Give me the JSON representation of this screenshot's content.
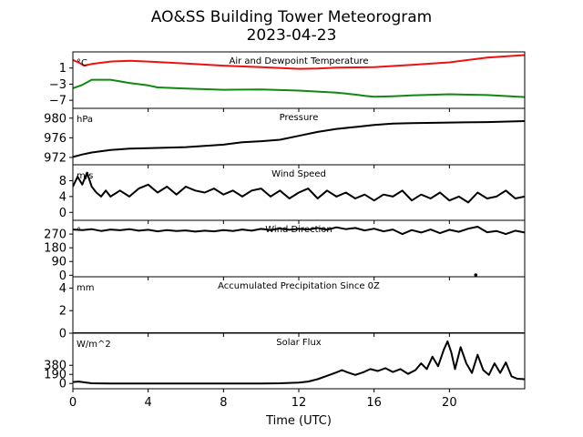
{
  "title": "AO&SS Building Tower Meteorogram",
  "subtitle": "2023-04-23",
  "colors": {
    "temperature": "#ee1111",
    "dewpoint": "#118811",
    "default": "#000000"
  },
  "chart_data": {
    "type": "line",
    "xlabel": "Time (UTC)",
    "xlim": [
      0,
      24
    ],
    "x_ticks": [
      0,
      4,
      8,
      12,
      16,
      20
    ],
    "x_tick_labels": [
      "0",
      "4",
      "8",
      "12",
      "16",
      "20"
    ],
    "panels": [
      {
        "title": "Air and Dewpoint Temperature",
        "unit_label": "°C",
        "ylim": [
          -9,
          5
        ],
        "y_ticks": [
          1,
          -3,
          -7
        ],
        "y_tick_labels": [
          "1",
          "−3",
          "−7"
        ],
        "series": [
          {
            "color": "#ee1111",
            "x": [
              0,
              0.3,
              0.6,
              1,
              2,
              3,
              4,
              6,
              8,
              10,
              12,
              13,
              14,
              16,
              18,
              20,
              22,
              24
            ],
            "values": [
              3.0,
              2.4,
              1.6,
              2.0,
              2.6,
              2.8,
              2.6,
              2.1,
              1.6,
              1.2,
              0.8,
              0.9,
              1.1,
              1.2,
              1.8,
              2.4,
              3.6,
              4.2
            ]
          },
          {
            "color": "#118811",
            "x": [
              0,
              0.5,
              1,
              2,
              3,
              4,
              4.5,
              6,
              8,
              10,
              12,
              14,
              15,
              15.5,
              16,
              17,
              18,
              20,
              22,
              24
            ],
            "values": [
              -4.0,
              -3.2,
              -1.9,
              -1.9,
              -2.7,
              -3.3,
              -3.8,
              -4.1,
              -4.4,
              -4.3,
              -4.6,
              -5.1,
              -5.6,
              -5.9,
              -6.1,
              -6.0,
              -5.8,
              -5.5,
              -5.7,
              -6.2
            ]
          }
        ]
      },
      {
        "title": "Pressure",
        "unit_label": "hPa",
        "ylim": [
          970.5,
          982
        ],
        "y_ticks": [
          980,
          976,
          972
        ],
        "y_tick_labels": [
          "980",
          "976",
          "972"
        ],
        "series": [
          {
            "color": "#000000",
            "x": [
              0,
              0.5,
              1,
              2,
              3,
              4,
              6,
              8,
              9,
              10,
              11,
              12,
              13,
              14,
              15,
              16,
              17,
              18,
              20,
              22,
              24
            ],
            "values": [
              972.1,
              972.6,
              973.0,
              973.5,
              973.8,
              973.9,
              974.1,
              974.6,
              975.1,
              975.3,
              975.6,
              976.4,
              977.2,
              977.8,
              978.2,
              978.6,
              978.9,
              979.0,
              979.1,
              979.2,
              979.4
            ]
          }
        ]
      },
      {
        "title": "Wind Speed",
        "unit_label": "m/s",
        "ylim": [
          -2,
          12
        ],
        "y_ticks": [
          8,
          4,
          0
        ],
        "y_tick_labels": [
          "8",
          "4",
          "0"
        ],
        "series": [
          {
            "color": "#000000",
            "x": [
              0,
              0.25,
              0.5,
              0.75,
              1,
              1.25,
              1.5,
              1.75,
              2,
              2.5,
              3,
              3.5,
              4,
              4.5,
              5,
              5.5,
              6,
              6.5,
              7,
              7.5,
              8,
              8.5,
              9,
              9.5,
              10,
              10.5,
              11,
              11.5,
              12,
              12.5,
              13,
              13.5,
              14,
              14.5,
              15,
              15.5,
              16,
              16.5,
              17,
              17.5,
              18,
              18.5,
              19,
              19.5,
              20,
              20.5,
              21,
              21.5,
              22,
              22.5,
              23,
              23.5,
              24
            ],
            "values": [
              6.5,
              9.0,
              7.0,
              10.0,
              6.5,
              5.0,
              4.0,
              5.5,
              4.0,
              5.5,
              4.0,
              6.0,
              7.0,
              5.0,
              6.5,
              4.5,
              6.5,
              5.5,
              5.0,
              6.0,
              4.5,
              5.5,
              4.0,
              5.5,
              6.0,
              4.0,
              5.5,
              3.5,
              5.0,
              6.0,
              3.5,
              5.5,
              4.0,
              5.0,
              3.5,
              4.5,
              3.0,
              4.5,
              4.0,
              5.5,
              3.0,
              4.5,
              3.5,
              5.0,
              3.0,
              4.0,
              2.5,
              5.0,
              3.5,
              4.0,
              5.5,
              3.5,
              4.0
            ]
          }
        ]
      },
      {
        "title": "Wind Direction",
        "unit_label": "°",
        "ylim": [
          -10,
          360
        ],
        "y_ticks": [
          270,
          180,
          90,
          0
        ],
        "y_tick_labels": [
          "270",
          "180",
          "90",
          "0"
        ],
        "series": [
          {
            "color": "#000000",
            "x": [
              0,
              0.5,
              1,
              1.5,
              2,
              2.5,
              3,
              3.5,
              4,
              4.5,
              5,
              5.5,
              6,
              6.5,
              7,
              7.5,
              8,
              8.5,
              9,
              9.5,
              10,
              10.5,
              11,
              11.5,
              12,
              12.5,
              13,
              13.5,
              14,
              14.5,
              15,
              15.5,
              16,
              16.5,
              17,
              17.5,
              18,
              18.5,
              19,
              19.5,
              20,
              20.5,
              21,
              21.5,
              22,
              22.5,
              23,
              23.5,
              24
            ],
            "values": [
              300,
              296,
              302,
              290,
              300,
              295,
              302,
              292,
              298,
              288,
              296,
              290,
              294,
              286,
              292,
              288,
              296,
              290,
              300,
              292,
              304,
              296,
              306,
              298,
              304,
              300,
              310,
              298,
              314,
              302,
              310,
              294,
              305,
              288,
              300,
              270,
              296,
              280,
              300,
              276,
              298,
              285,
              305,
              318,
              282,
              290,
              270,
              292,
              280
            ]
          }
        ],
        "points": [
          {
            "x": 21.4,
            "y": 2
          }
        ]
      },
      {
        "title": "Accumulated Precipitation Since 0Z",
        "unit_label": "mm",
        "ylim": [
          0,
          5
        ],
        "y_ticks": [
          4,
          2,
          0
        ],
        "y_tick_labels": [
          "4",
          "2",
          "0"
        ],
        "series": [
          {
            "color": "#000000",
            "x": [
              0,
              24
            ],
            "values": [
              0,
              0
            ]
          }
        ]
      },
      {
        "title": "Solar Flux",
        "unit_label": "W/m^2",
        "ylim": [
          -110,
          1050
        ],
        "y_ticks": [
          380,
          190,
          0
        ],
        "y_tick_labels": [
          "380",
          "190",
          "0"
        ],
        "series": [
          {
            "color": "#000000",
            "x": [
              0,
              0.3,
              1,
              2,
              4,
              6,
              8,
              10,
              11,
              12,
              12.5,
              13,
              13.5,
              14,
              14.3,
              14.6,
              15,
              15.4,
              15.8,
              16.2,
              16.6,
              17,
              17.4,
              17.8,
              18.2,
              18.5,
              18.8,
              19.1,
              19.4,
              19.7,
              19.9,
              20.1,
              20.3,
              20.6,
              20.9,
              21.2,
              21.5,
              21.8,
              22.1,
              22.4,
              22.7,
              23.0,
              23.3,
              23.6,
              24
            ],
            "values": [
              30,
              40,
              5,
              0,
              0,
              0,
              0,
              0,
              5,
              20,
              40,
              90,
              160,
              230,
              280,
              230,
              180,
              230,
              300,
              260,
              320,
              240,
              300,
              200,
              280,
              420,
              300,
              560,
              360,
              700,
              880,
              650,
              300,
              760,
              420,
              220,
              600,
              280,
              180,
              420,
              220,
              440,
              150,
              100,
              90
            ]
          }
        ]
      }
    ]
  }
}
